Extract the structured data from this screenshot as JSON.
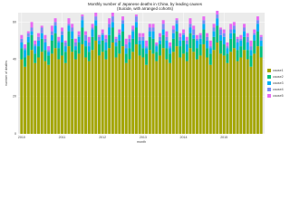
{
  "chart_data": {
    "type": "stacked_bar",
    "title": "Monthly number of Japanese deaths in China, by leading causes",
    "subtitle": "(Suicide, with arranged cohorts)",
    "x_label": "month",
    "y_label": "number of deaths",
    "categories": [
      "2010",
      null,
      null,
      null,
      null,
      null,
      null,
      null,
      null,
      null,
      null,
      null,
      "2011",
      null,
      null,
      null,
      null,
      null,
      null,
      null,
      null,
      null,
      null,
      null,
      "2012",
      null,
      null,
      null,
      null,
      null,
      null,
      null,
      null,
      null,
      null,
      null,
      "2013",
      null,
      null,
      null,
      null,
      null,
      null,
      null,
      null,
      null,
      null,
      null,
      "2014",
      null,
      null,
      null,
      null,
      null,
      null,
      null,
      null,
      null,
      null,
      null,
      "2015",
      null,
      null,
      null,
      null,
      null,
      null,
      null,
      null,
      null,
      null,
      null
    ],
    "ylim": [
      0,
      65
    ],
    "yticks": [
      0,
      20,
      40,
      60
    ],
    "grid": true,
    "series": [
      {
        "name": "cause1",
        "color": "#a3a500",
        "values": [
          40,
          36,
          42,
          45,
          38,
          41,
          44,
          39,
          37,
          43,
          46,
          40,
          42,
          38,
          47,
          44,
          40,
          43,
          48,
          41,
          39,
          45,
          50,
          42,
          44,
          40,
          46,
          49,
          41,
          43,
          47,
          38,
          40,
          44,
          48,
          42,
          41,
          37,
          45,
          43,
          39,
          42,
          46,
          40,
          38,
          44,
          47,
          41,
          43,
          39,
          46,
          44,
          40,
          42,
          48,
          41,
          37,
          45,
          49,
          43,
          42,
          38,
          44,
          46,
          39,
          41,
          45,
          40,
          36,
          43,
          47,
          41
        ]
      },
      {
        "name": "cause2",
        "color": "#00bf7d",
        "values": [
          6,
          5,
          7,
          8,
          5,
          6,
          7,
          6,
          5,
          7,
          8,
          6,
          7,
          6,
          8,
          7,
          5,
          6,
          9,
          6,
          5,
          7,
          8,
          6,
          6,
          5,
          7,
          8,
          6,
          7,
          8,
          5,
          6,
          7,
          9,
          6,
          5,
          6,
          7,
          8,
          5,
          6,
          7,
          6,
          5,
          7,
          8,
          6,
          7,
          5,
          8,
          7,
          6,
          6,
          8,
          5,
          6,
          7,
          9,
          7,
          6,
          5,
          7,
          8,
          6,
          6,
          7,
          5,
          6,
          7,
          8,
          6
        ]
      },
      {
        "name": "cause3",
        "color": "#00b0f6",
        "values": [
          3,
          4,
          3,
          2,
          4,
          3,
          3,
          4,
          2,
          3,
          4,
          3,
          4,
          3,
          3,
          4,
          2,
          3,
          4,
          3,
          3,
          4,
          3,
          2,
          3,
          4,
          4,
          3,
          2,
          3,
          4,
          3,
          3,
          4,
          3,
          2,
          4,
          3,
          3,
          4,
          3,
          2,
          3,
          4,
          3,
          3,
          4,
          3,
          3,
          4,
          3,
          2,
          4,
          3,
          3,
          4,
          3,
          3,
          4,
          3,
          4,
          3,
          3,
          2,
          4,
          3,
          3,
          4,
          3,
          3,
          4,
          3
        ]
      },
      {
        "name": "cause4",
        "color": "#7b8cf5",
        "values": [
          2,
          1,
          2,
          2,
          1,
          2,
          3,
          2,
          1,
          2,
          2,
          1,
          2,
          2,
          1,
          2,
          2,
          1,
          2,
          3,
          2,
          1,
          2,
          2,
          1,
          2,
          2,
          3,
          2,
          1,
          2,
          2,
          2,
          1,
          3,
          2,
          2,
          1,
          2,
          2,
          1,
          2,
          3,
          2,
          1,
          2,
          2,
          2,
          1,
          2,
          2,
          3,
          1,
          2,
          2,
          2,
          1,
          2,
          2,
          3,
          2,
          1,
          2,
          2,
          2,
          1,
          2,
          3,
          2,
          1,
          2,
          2
        ]
      },
      {
        "name": "cause5",
        "color": "#e76bf3",
        "values": [
          2,
          2,
          1,
          3,
          2,
          2,
          1,
          2,
          2,
          3,
          2,
          2,
          2,
          1,
          3,
          2,
          2,
          2,
          1,
          2,
          3,
          2,
          2,
          1,
          2,
          2,
          3,
          2,
          1,
          2,
          2,
          3,
          2,
          2,
          1,
          2,
          2,
          3,
          2,
          2,
          1,
          2,
          2,
          3,
          2,
          2,
          1,
          2,
          2,
          2,
          3,
          2,
          2,
          1,
          2,
          2,
          3,
          2,
          2,
          1,
          2,
          2,
          3,
          2,
          1,
          2,
          2,
          2,
          3,
          2,
          2,
          1
        ]
      }
    ],
    "legend_position": "right"
  }
}
